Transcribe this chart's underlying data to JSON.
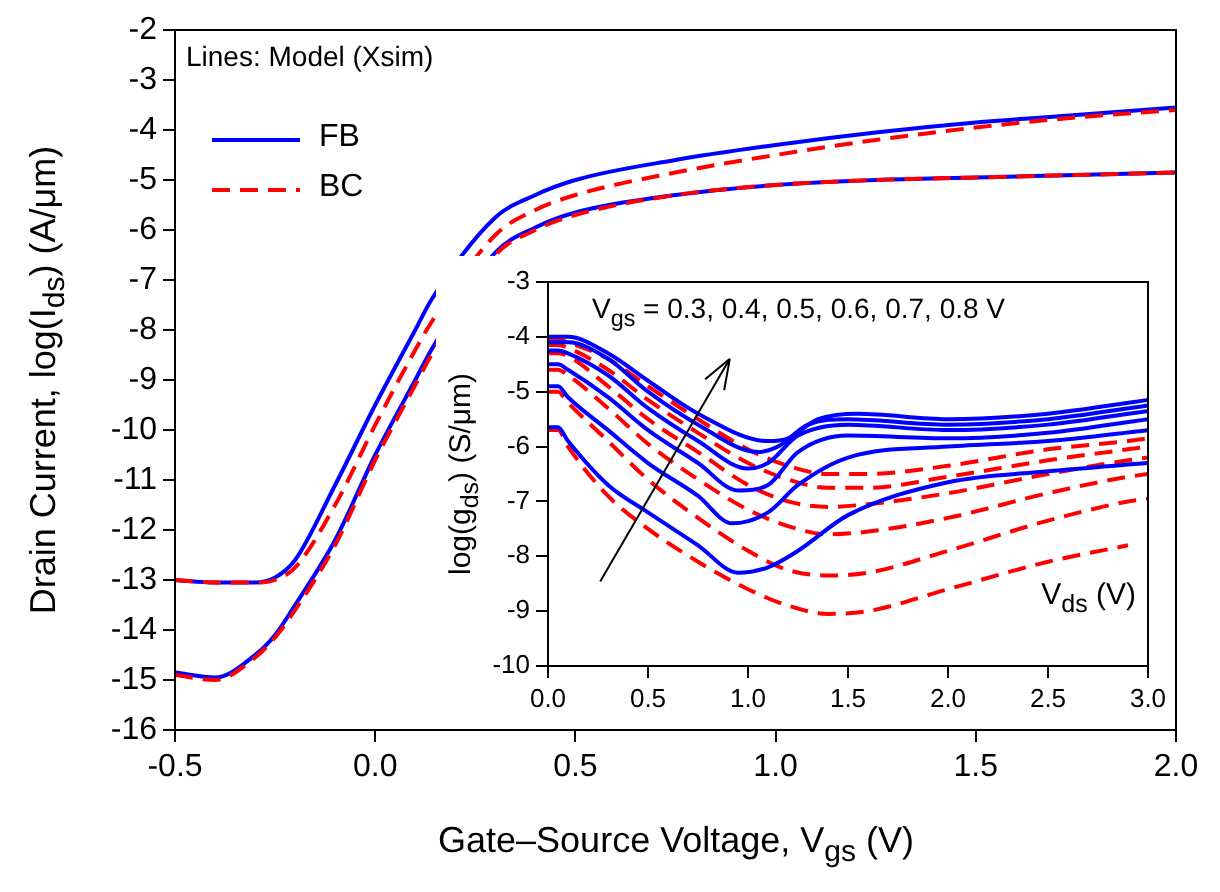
{
  "chart_data": [
    {
      "type": "line",
      "xlabel": "Gate–Source Voltage, V$_{gs}$ (V)",
      "ylabel": "Drain Current, log(I$_{ds}$) (A/μm)",
      "annotations": [
        "Lines: Model (Xsim)"
      ],
      "xlim": [
        -0.5,
        2.0
      ],
      "ylim": [
        -16,
        -2
      ],
      "xticks": [
        {
          "value": -0.5,
          "label": "-0.5"
        },
        {
          "value": 0,
          "label": "0.0"
        },
        {
          "value": 0.5,
          "label": "0.5"
        },
        {
          "value": 1,
          "label": "1.0"
        },
        {
          "value": 1.5,
          "label": "1.5"
        },
        {
          "value": 2,
          "label": "2.0"
        }
      ],
      "yticks": [
        -16,
        -15,
        -14,
        -13,
        -12,
        -11,
        -10,
        -9,
        -8,
        -7,
        -6,
        -5,
        -4,
        -3,
        -2
      ],
      "legend": "top left",
      "marker": "none",
      "x": [
        -0.5,
        -0.4,
        -0.3,
        -0.25,
        -0.2,
        -0.1,
        0,
        0.1,
        0.14,
        0.3,
        0.4,
        0.5,
        0.75,
        1.0,
        1.25,
        1.5,
        1.75,
        2.0
      ],
      "series": [
        {
          "name": "FB",
          "color": "#0000ff",
          "line_style": "solid",
          "values": [
            -13,
            -13.05,
            -13.05,
            -12.95,
            -12.6,
            -11.1,
            -9.5,
            -8.0,
            -7.4,
            -5.75,
            -5.3,
            -5.0,
            -4.6,
            -4.3,
            -4.05,
            -3.85,
            -3.7,
            -3.55
          ]
        },
        {
          "name": "BC",
          "color": "#ff0000",
          "line_style": "dashed",
          "values": [
            -13,
            -13.05,
            -13.05,
            -13.0,
            -12.75,
            -11.5,
            -9.9,
            -8.4,
            -7.85,
            -6.1,
            -5.6,
            -5.3,
            -4.85,
            -4.5,
            -4.2,
            -3.95,
            -3.75,
            -3.6
          ]
        },
        {
          "color": "#0000ff",
          "line_style": "solid",
          "values": [
            -14.85,
            -14.95,
            -14.5,
            -14.1,
            -13.5,
            -12.2,
            -10.5,
            -9.0,
            -8.4,
            -6.45,
            -5.95,
            -5.65,
            -5.3,
            -5.1,
            -5.0,
            -4.95,
            -4.9,
            -4.85
          ]
        },
        {
          "color": "#ff0000",
          "line_style": "dashed",
          "values": [
            -14.9,
            -15.0,
            -14.55,
            -14.15,
            -13.6,
            -12.3,
            -10.6,
            -9.1,
            -8.5,
            -6.5,
            -6.0,
            -5.7,
            -5.3,
            -5.1,
            -5.0,
            -4.95,
            -4.9,
            -4.85
          ]
        }
      ]
    },
    {
      "type": "line",
      "xlabel": "V$_{ds}$ (V)",
      "ylabel": "log(g$_{ds}$) (S/μm)",
      "annotations": [
        "V$_{gs}$ = 0.3, 0.4, 0.5, 0.6, 0.7, 0.8 V"
      ],
      "xlim": [
        0,
        3.0
      ],
      "ylim": [
        -10,
        -3
      ],
      "xticks": [
        {
          "value": 0,
          "label": "0.0"
        },
        {
          "value": 0.5,
          "label": "0.5"
        },
        {
          "value": 1,
          "label": "1.0"
        },
        {
          "value": 1.5,
          "label": "1.5"
        },
        {
          "value": 2,
          "label": "2.0"
        },
        {
          "value": 2.5,
          "label": "2.5"
        },
        {
          "value": 3,
          "label": "3.0"
        }
      ],
      "yticks": [
        -10,
        -9,
        -8,
        -7,
        -6,
        -5,
        -4,
        -3
      ],
      "marker": "none",
      "series": [
        {
          "color": "#ff0000",
          "line_style": "dashed",
          "x": [
            0,
            0.05,
            0.1,
            0.3,
            0.5,
            0.75,
            1.0,
            1.2,
            1.4,
            1.6,
            2.0,
            2.5,
            2.9
          ],
          "values": [
            -5.7,
            -5.7,
            -6.0,
            -6.9,
            -7.5,
            -8.1,
            -8.6,
            -8.9,
            -9.05,
            -9.0,
            -8.6,
            -8.1,
            -7.8
          ]
        },
        {
          "color": "#ff0000",
          "line_style": "dashed",
          "x": [
            0,
            0.05,
            0.1,
            0.3,
            0.5,
            0.75,
            1.0,
            1.2,
            1.4,
            1.6,
            2.0,
            2.5,
            2.9,
            3.0
          ],
          "values": [
            -5.0,
            -5.0,
            -5.2,
            -5.9,
            -6.6,
            -7.3,
            -7.9,
            -8.25,
            -8.35,
            -8.3,
            -7.9,
            -7.35,
            -7.0,
            -6.95
          ]
        },
        {
          "color": "#ff0000",
          "line_style": "dashed",
          "x": [
            0,
            0.05,
            0.1,
            0.3,
            0.5,
            0.75,
            1.0,
            1.2,
            1.4,
            1.6,
            2.0,
            2.5,
            2.9,
            3.0
          ],
          "values": [
            -4.6,
            -4.6,
            -4.7,
            -5.3,
            -5.95,
            -6.6,
            -7.15,
            -7.45,
            -7.6,
            -7.55,
            -7.3,
            -6.85,
            -6.55,
            -6.5
          ]
        },
        {
          "color": "#ff0000",
          "line_style": "dashed",
          "x": [
            0,
            0.05,
            0.1,
            0.3,
            0.5,
            0.75,
            1.0,
            1.2,
            1.4,
            1.6,
            2.0,
            2.5,
            2.9,
            3.0
          ],
          "values": [
            -4.3,
            -4.3,
            -4.35,
            -4.9,
            -5.5,
            -6.1,
            -6.7,
            -7.0,
            -7.1,
            -7.05,
            -6.85,
            -6.5,
            -6.25,
            -6.2
          ]
        },
        {
          "color": "#ff0000",
          "line_style": "dashed",
          "x": [
            0,
            0.05,
            0.1,
            0.3,
            0.5,
            0.75,
            1.0,
            1.2,
            1.4,
            1.6,
            2.0,
            2.5,
            2.9,
            3.0
          ],
          "values": [
            -4.15,
            -4.15,
            -4.2,
            -4.6,
            -5.15,
            -5.75,
            -6.3,
            -6.6,
            -6.75,
            -6.75,
            -6.55,
            -6.25,
            -6.05,
            -6.0
          ]
        },
        {
          "color": "#ff0000",
          "line_style": "dashed",
          "x": [
            0,
            0.05,
            0.1,
            0.3,
            0.5,
            0.75,
            1.0,
            1.2,
            1.4,
            1.6,
            2.0,
            2.5,
            2.9,
            3.0
          ],
          "values": [
            -4.05,
            -4.05,
            -4.1,
            -4.4,
            -4.9,
            -5.5,
            -6.05,
            -6.35,
            -6.5,
            -6.5,
            -6.35,
            -6.05,
            -5.9,
            -5.85
          ]
        },
        {
          "color": "#0000ff",
          "line_style": "solid",
          "x": [
            0,
            0.05,
            0.1,
            0.3,
            0.5,
            0.75,
            0.95,
            1.1,
            1.25,
            1.5,
            2.0,
            2.5,
            3.0
          ],
          "values": [
            -5.65,
            -5.65,
            -5.9,
            -6.7,
            -7.2,
            -7.8,
            -8.3,
            -8.2,
            -7.9,
            -7.25,
            -6.65,
            -6.45,
            -6.3
          ]
        },
        {
          "color": "#0000ff",
          "line_style": "solid",
          "x": [
            0,
            0.05,
            0.1,
            0.3,
            0.5,
            0.75,
            0.92,
            1.1,
            1.25,
            1.5,
            2.0,
            2.5,
            3.0
          ],
          "values": [
            -4.9,
            -4.9,
            -5.1,
            -5.7,
            -6.3,
            -6.9,
            -7.4,
            -7.2,
            -6.7,
            -6.2,
            -6.0,
            -5.9,
            -5.7
          ]
        },
        {
          "color": "#0000ff",
          "line_style": "solid",
          "x": [
            0,
            0.05,
            0.1,
            0.3,
            0.5,
            0.75,
            0.95,
            1.1,
            1.25,
            1.5,
            2.0,
            2.5,
            3.0
          ],
          "values": [
            -4.5,
            -4.5,
            -4.6,
            -5.1,
            -5.7,
            -6.3,
            -6.8,
            -6.7,
            -6.1,
            -5.8,
            -5.85,
            -5.75,
            -5.5
          ]
        },
        {
          "color": "#0000ff",
          "line_style": "solid",
          "x": [
            0,
            0.05,
            0.1,
            0.3,
            0.5,
            0.75,
            1.0,
            1.1,
            1.25,
            1.5,
            2.0,
            2.5,
            3.0
          ],
          "values": [
            -4.25,
            -4.25,
            -4.3,
            -4.7,
            -5.3,
            -5.9,
            -6.4,
            -6.3,
            -5.8,
            -5.6,
            -5.7,
            -5.6,
            -5.35
          ]
        },
        {
          "color": "#0000ff",
          "line_style": "solid",
          "x": [
            0,
            0.05,
            0.1,
            0.3,
            0.5,
            0.75,
            1.05,
            1.15,
            1.3,
            1.5,
            2.0,
            2.5,
            3.0
          ],
          "values": [
            -4.1,
            -4.1,
            -4.1,
            -4.4,
            -5.0,
            -5.6,
            -6.1,
            -6.0,
            -5.6,
            -5.5,
            -5.6,
            -5.5,
            -5.25
          ]
        },
        {
          "color": "#0000ff",
          "line_style": "solid",
          "x": [
            0,
            0.05,
            0.1,
            0.3,
            0.5,
            0.75,
            1.1,
            1.2,
            1.35,
            1.55,
            2.0,
            2.5,
            3.0
          ],
          "values": [
            -4.0,
            -4.0,
            -4.0,
            -4.3,
            -4.8,
            -5.4,
            -5.9,
            -5.85,
            -5.5,
            -5.4,
            -5.5,
            -5.4,
            -5.15
          ]
        }
      ]
    }
  ]
}
